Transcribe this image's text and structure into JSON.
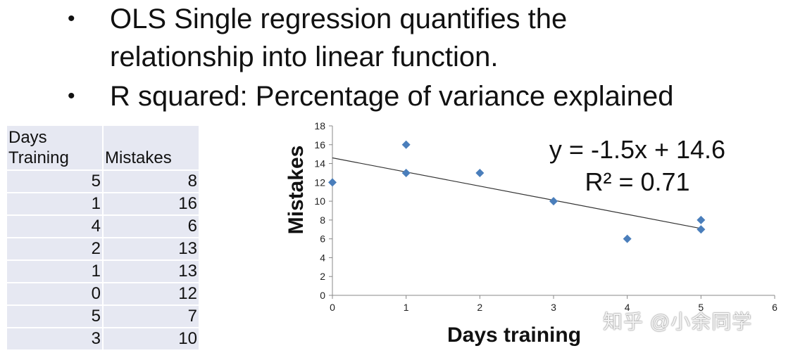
{
  "bullets": [
    {
      "marker": "•",
      "lines": [
        "OLS Single regression quantifies the",
        "relationship into linear function."
      ]
    },
    {
      "marker": "•",
      "lines": [
        "R squared: Percentage of variance explained"
      ]
    }
  ],
  "table": {
    "headers": [
      "Days\nTraining",
      "Mistakes"
    ],
    "rows": [
      [
        "5",
        "8"
      ],
      [
        "1",
        "16"
      ],
      [
        "4",
        "6"
      ],
      [
        "2",
        "13"
      ],
      [
        "1",
        "13"
      ],
      [
        "0",
        "12"
      ],
      [
        "5",
        "7"
      ],
      [
        "3",
        "10"
      ]
    ],
    "background_color": "#e6e8f2"
  },
  "chart_data": {
    "type": "scatter",
    "title": "",
    "xlabel": "Days training",
    "ylabel": "Mistakes",
    "xlim": [
      0,
      6
    ],
    "ylim": [
      0,
      18
    ],
    "xticks": [
      0,
      1,
      2,
      3,
      4,
      5,
      6
    ],
    "yticks": [
      0,
      2,
      4,
      6,
      8,
      10,
      12,
      14,
      16,
      18
    ],
    "grid": false,
    "points": [
      {
        "x": 5,
        "y": 8
      },
      {
        "x": 1,
        "y": 16
      },
      {
        "x": 4,
        "y": 6
      },
      {
        "x": 2,
        "y": 13
      },
      {
        "x": 1,
        "y": 13
      },
      {
        "x": 0,
        "y": 12
      },
      {
        "x": 5,
        "y": 7
      },
      {
        "x": 3,
        "y": 10
      }
    ],
    "marker_color": "#4a7ebb",
    "trendline": {
      "slope": -1.5,
      "intercept": 14.6,
      "x_range": [
        0,
        5
      ],
      "color": "#333333"
    },
    "annotations": [
      "y = -1.5x + 14.6",
      "R² = 0.71"
    ]
  },
  "watermark": "知乎 @小余同学"
}
